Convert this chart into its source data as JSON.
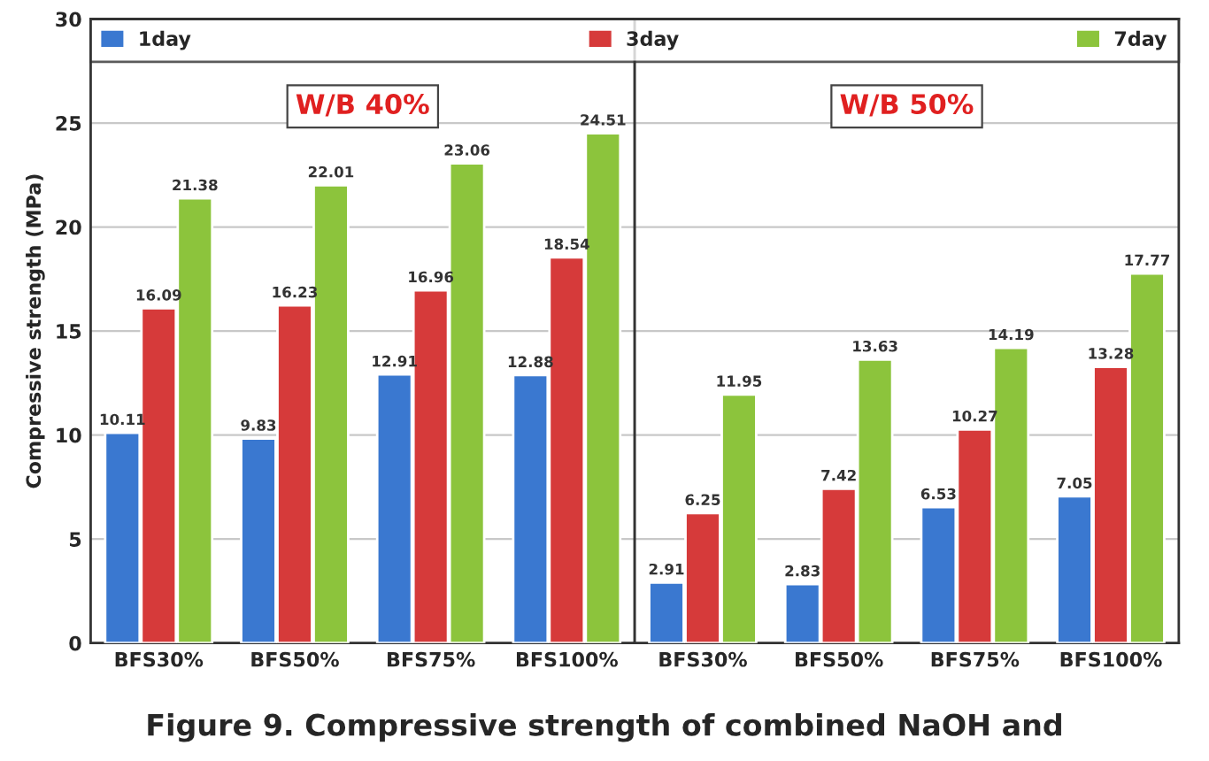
{
  "chart_data": [
    {
      "type": "bar",
      "title": "W/B 40%",
      "ylabel": "Compressive strength (MPa)",
      "categories": [
        "BFS30%",
        "BFS50%",
        "BFS75%",
        "BFS100%"
      ],
      "series": [
        {
          "name": "1day",
          "color": "#3a78d0",
          "values": [
            10.11,
            9.83,
            12.91,
            12.88
          ]
        },
        {
          "name": "3day",
          "color": "#d63a3a",
          "values": [
            16.09,
            16.23,
            16.96,
            18.54
          ]
        },
        {
          "name": "7day",
          "color": "#8cc43c",
          "values": [
            21.38,
            22.01,
            23.06,
            24.51
          ]
        }
      ],
      "ylim": [
        0,
        30
      ],
      "yticks": [
        0,
        5,
        10,
        15,
        20,
        25,
        30
      ],
      "grid": "y",
      "legend": "top",
      "data_labels": true,
      "annotations": [
        "Figure 9. Compressive strength of combined NaOH and"
      ]
    },
    {
      "type": "bar",
      "title": "W/B 50%",
      "categories": [
        "BFS30%",
        "BFS50%",
        "BFS75%",
        "BFS100%"
      ],
      "series": [
        {
          "color": "#3a78d0",
          "values": [
            2.91,
            2.83,
            6.53,
            7.05
          ]
        },
        {
          "color": "#d63a3a",
          "values": [
            6.25,
            7.42,
            10.27,
            13.28
          ]
        },
        {
          "color": "#8cc43c",
          "values": [
            11.95,
            13.63,
            14.19,
            17.77
          ]
        }
      ],
      "ylim": [
        0,
        30
      ],
      "yticks": [
        0,
        5,
        10,
        15,
        20,
        25,
        30
      ],
      "grid": "y",
      "tick_labels": "x",
      "data_labels": true
    }
  ]
}
